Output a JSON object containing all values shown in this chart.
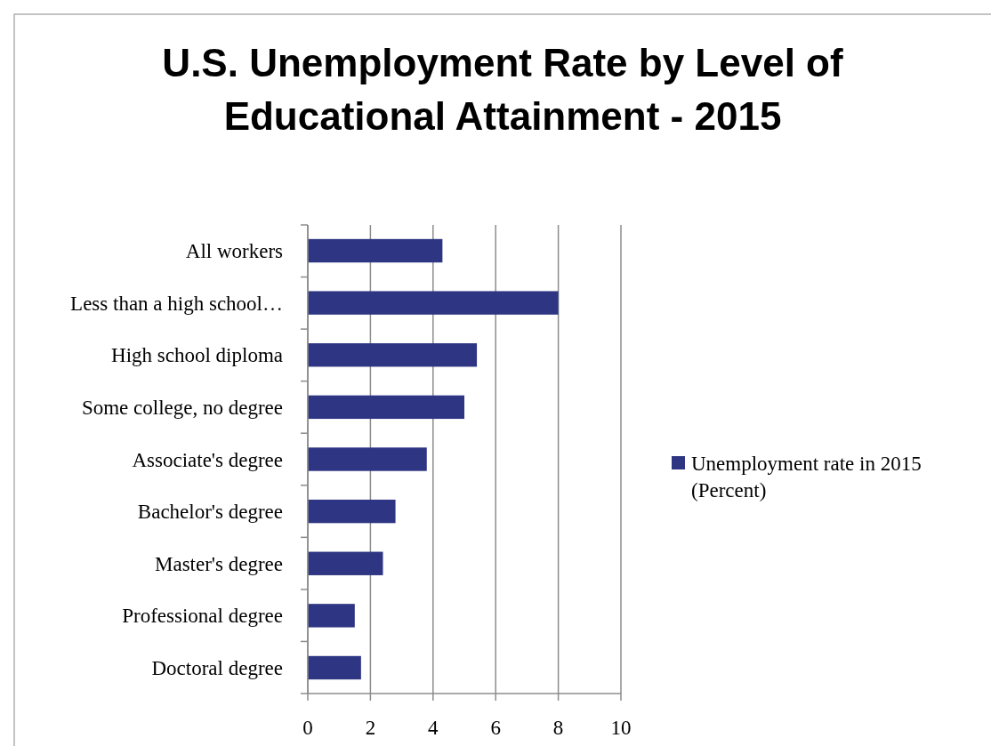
{
  "chart_data": {
    "type": "bar",
    "orientation": "horizontal",
    "title": "U.S. Unemployment Rate by Level of Educational Attainment - 2015",
    "categories": [
      "All workers",
      "Less than a high school…",
      "High school diploma",
      "Some college, no degree",
      "Associate's degree",
      "Bachelor's degree",
      "Master's degree",
      "Professional degree",
      "Doctoral degree"
    ],
    "series": [
      {
        "name": "Unemployment rate in 2015 (Percent)",
        "color": "#2e3582",
        "values": [
          4.3,
          8.0,
          5.4,
          5.0,
          3.8,
          2.8,
          2.4,
          1.5,
          1.7
        ]
      }
    ],
    "xlim": [
      0,
      10
    ],
    "xticks": [
      0,
      2,
      4,
      6,
      8,
      10
    ],
    "grid": "x",
    "legend": "right"
  }
}
